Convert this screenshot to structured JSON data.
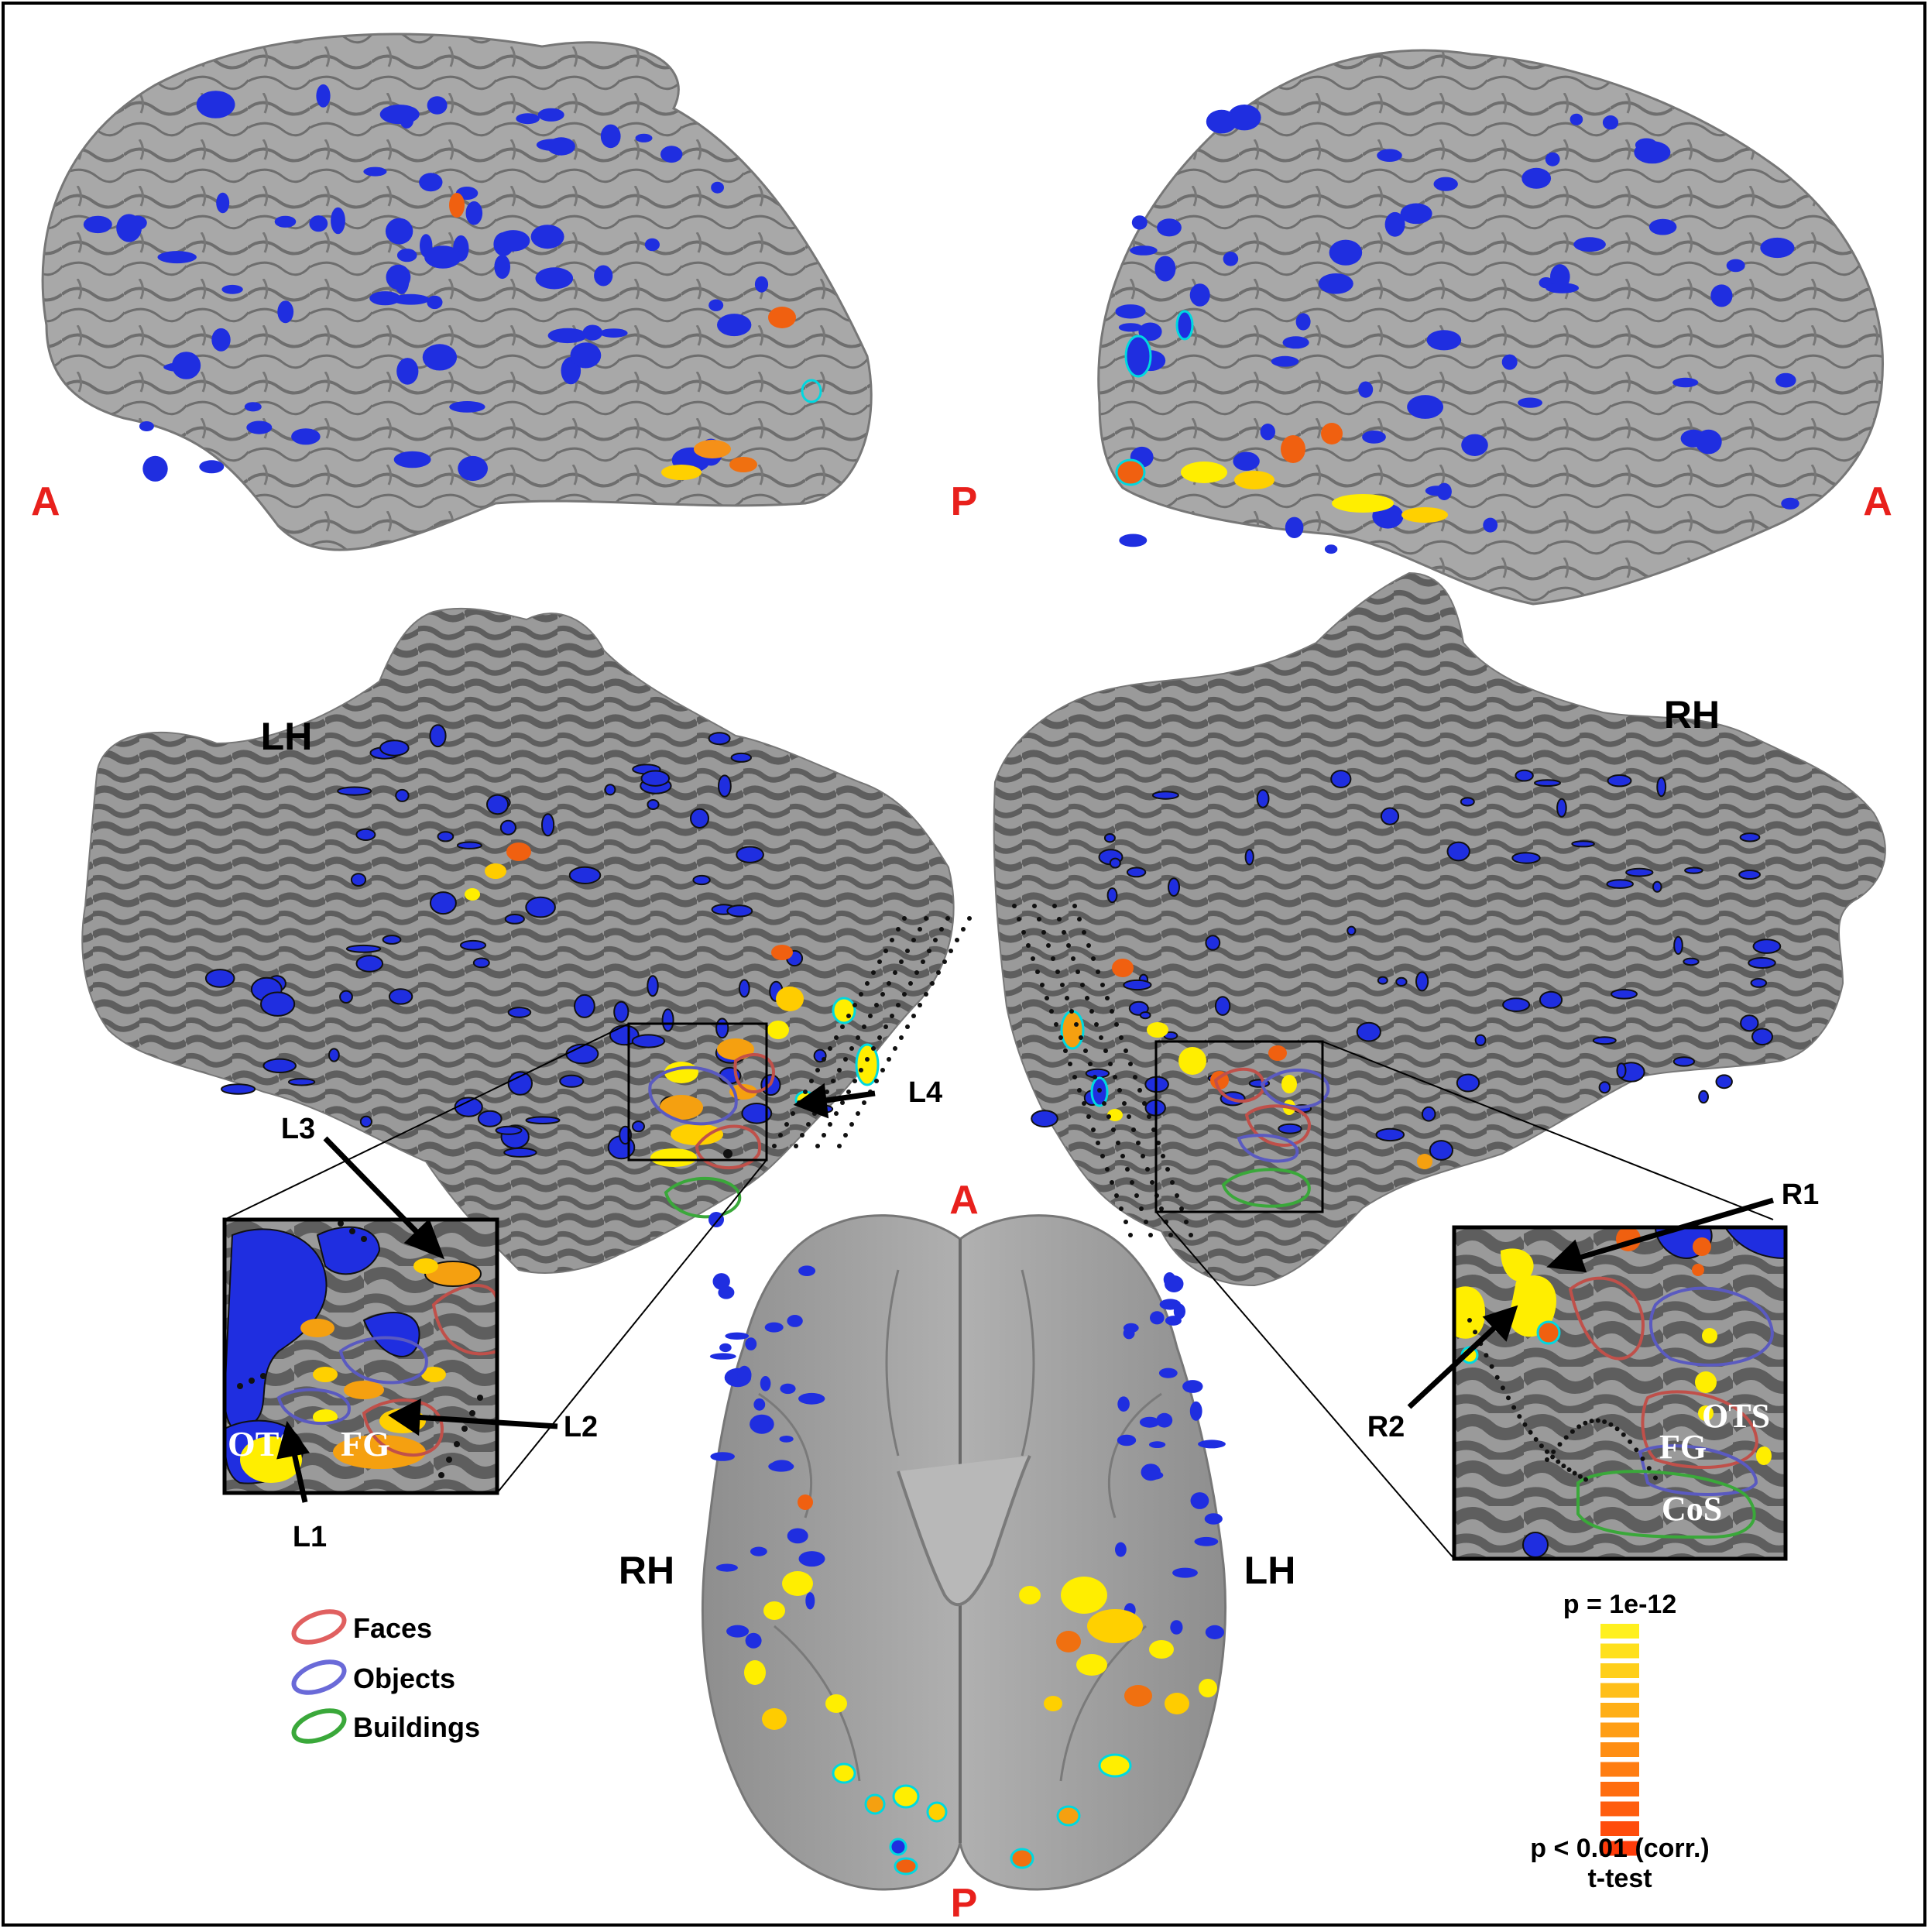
{
  "orientation_labels": {
    "left_lateral_anterior": "A",
    "lateral_posterior": "P",
    "right_lateral_anterior": "A",
    "ventral_anterior": "A",
    "ventral_posterior": "P"
  },
  "hemisphere_labels": {
    "flat_left": "LH",
    "flat_right": "RH",
    "ventral_left_side": "RH",
    "ventral_right_side": "LH"
  },
  "callouts": {
    "L1": "L1",
    "L2": "L2",
    "L3": "L3",
    "L4": "L4",
    "R1": "R1",
    "R2": "R2"
  },
  "inset_labels": {
    "left_ots": "OTS",
    "left_fg": "FG",
    "right_ots": "OTS",
    "right_fg": "FG",
    "right_cos": "CoS"
  },
  "legend": {
    "faces": "Faces",
    "objects": "Objects",
    "buildings": "Buildings"
  },
  "colorbar": {
    "top_label": "p = 1e-12",
    "bottom_label": "p < 0.01 (corr.)",
    "test_label": "t-test",
    "segments": 12
  },
  "colors": {
    "label_red": "#e8201c",
    "faces_roi": "#e06060",
    "objects_roi": "#6a6ad8",
    "buildings_roi": "#3aa83a",
    "negative_blue": "#1f2ee0",
    "activation_yellow": "#ffee00",
    "activation_orange": "#f07010",
    "cortex_gray": "#9c9c9c",
    "sulcus_dark": "#5e5e5e"
  }
}
